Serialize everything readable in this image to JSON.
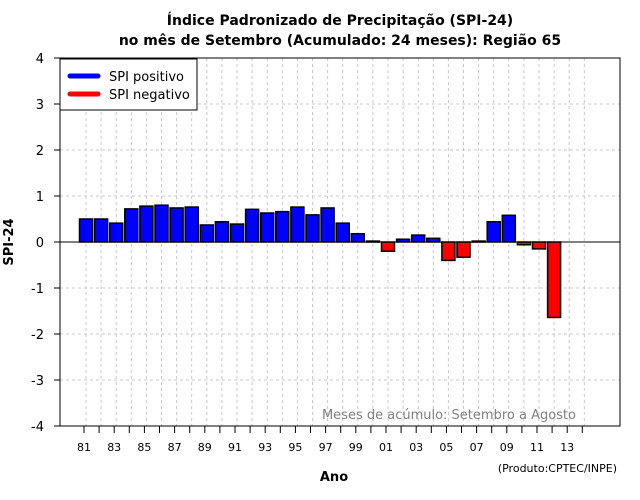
{
  "chart_data": {
    "type": "bar",
    "title": "Índice Padronizado de Precipitação (SPI-24)",
    "subtitle": "no mês de Setembro (Acumulado: 24 meses): Região 65",
    "xlabel": "Ano",
    "ylabel": "SPI-24",
    "ylim": [
      -4,
      4
    ],
    "yticks": [
      4,
      3,
      2,
      1,
      0,
      -1,
      -2,
      -3,
      -4
    ],
    "grid": true,
    "categories": [
      "1981",
      "1982",
      "1983",
      "1984",
      "1985",
      "1986",
      "1987",
      "1988",
      "1989",
      "1990",
      "1991",
      "1992",
      "1993",
      "1994",
      "1995",
      "1996",
      "1997",
      "1998",
      "1999",
      "2000",
      "2001",
      "2002",
      "2003",
      "2004",
      "2005",
      "2006",
      "2007",
      "2008",
      "2009",
      "2010",
      "2011",
      "2012",
      "2013",
      "2014"
    ],
    "xtick_labels": [
      "81",
      "83",
      "85",
      "87",
      "89",
      "91",
      "93",
      "95",
      "97",
      "99",
      "01",
      "03",
      "05",
      "07",
      "09",
      "11",
      "13"
    ],
    "values": [
      0.5,
      0.5,
      0.41,
      0.72,
      0.78,
      0.8,
      0.74,
      0.76,
      0.37,
      0.44,
      0.39,
      0.71,
      0.63,
      0.66,
      0.76,
      0.59,
      0.74,
      0.41,
      0.18,
      0.02,
      -0.2,
      0.06,
      0.15,
      0.08,
      -0.4,
      -0.33,
      0.02,
      0.44,
      0.58,
      -0.06,
      -0.15,
      -1.64,
      null,
      null
    ],
    "legend": {
      "position": "top-left",
      "entries": [
        {
          "label": "SPI positivo",
          "color": "#0000ff"
        },
        {
          "label": "SPI negativo",
          "color": "#ff0000"
        }
      ]
    },
    "annotation": "Meses de acúmulo: Setembro a Agosto",
    "credit": "(Produto:CPTEC/INPE)",
    "colors": {
      "positive": "#0000ff",
      "negative": "#ff0000",
      "grid": "#c8c8c8"
    }
  }
}
